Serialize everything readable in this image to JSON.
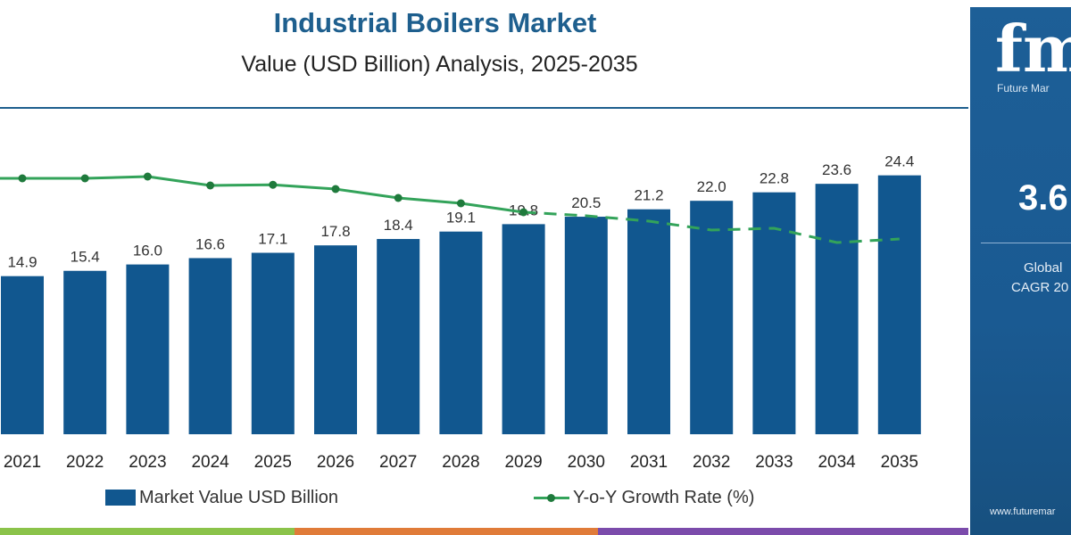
{
  "chart_data": {
    "type": "bar",
    "title": "Industrial Boilers Market",
    "subtitle": "Value (USD Billion) Analysis, 2025-2035",
    "categories": [
      "2021",
      "2022",
      "2023",
      "2024",
      "2025",
      "2026",
      "2027",
      "2028",
      "2029",
      "2030",
      "2031",
      "2032",
      "2033",
      "2034",
      "2035"
    ],
    "series": [
      {
        "name": "Market Value USD Billion",
        "type": "bar",
        "values": [
          14.9,
          15.4,
          16.0,
          16.6,
          17.1,
          17.8,
          18.4,
          19.1,
          19.8,
          20.5,
          21.2,
          22.0,
          22.8,
          23.6,
          24.4
        ],
        "labels": [
          "14.9",
          "15.4",
          "16.0",
          "16.6",
          "17.1",
          "17.8",
          "18.4",
          "19.1",
          "19.8",
          "20.5",
          "21.2",
          "22.0",
          "22.8",
          "23.6",
          "24.4"
        ]
      },
      {
        "name": "Y-o-Y Growth Rate (%)",
        "type": "line",
        "values": [
          4.0,
          4.0,
          4.05,
          3.8,
          3.82,
          3.7,
          3.45,
          3.3,
          3.05,
          2.95,
          2.8,
          2.55,
          2.6,
          2.2,
          2.3
        ]
      }
    ],
    "y_range": [
      0,
      26
    ],
    "y2_range": [
      0,
      5
    ],
    "grid": false,
    "legend_placement": "bottom",
    "colors": {
      "bar": "#11578f",
      "line": "#33a35a",
      "line_marker": "#1f7a3c"
    }
  },
  "legend": {
    "bar_label": "Market Value USD Billion",
    "line_label": "Y-o-Y Growth Rate (%)"
  },
  "side_panel": {
    "logo_letters": "fmi",
    "logo_text": "Future Mar",
    "cagr_value": "3.6",
    "global_label": "Global",
    "cagr_label": "CAGR 20",
    "website": "www.futuremar"
  },
  "colors": {
    "title": "#1e5f8e",
    "panel_bg": "#1d5f97",
    "strip": [
      "#8bc34a",
      "#e07b39",
      "#7b4bab"
    ]
  }
}
